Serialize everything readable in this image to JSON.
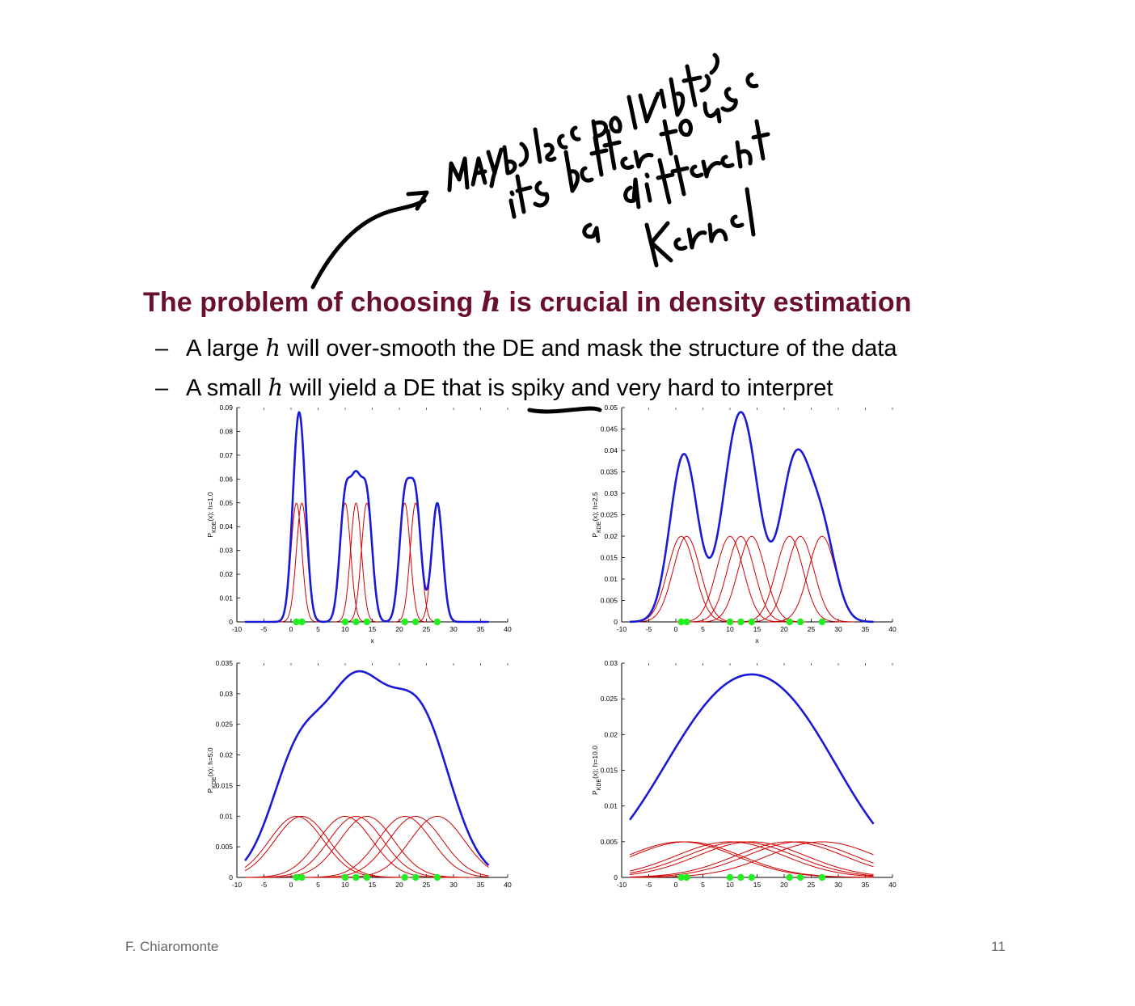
{
  "annotation": {
    "handwritten_text": [
      "MAYBE less points,",
      "its better to use",
      "a different",
      "Kernel"
    ]
  },
  "slide": {
    "heading_pre": "The problem of choosing ",
    "heading_var": "h",
    "heading_post": " is crucial in density estimation",
    "bullets": [
      {
        "dash": "–",
        "pre": "A large ",
        "var": "h",
        "post": " will over-smooth the DE and mask the structure of the data"
      },
      {
        "dash": "–",
        "pre": "A small ",
        "var": "h",
        "post": " will yield a DE that is spiky and very hard to interpret"
      }
    ],
    "footer_left": "F. Chiaromonte",
    "page_number": "11"
  },
  "colors": {
    "heading": "#6b0f2e",
    "kde_curve": "#1a1ad6",
    "kernel_curve": "#d00000",
    "data_point": "#22ee22"
  },
  "chart_data": [
    {
      "type": "line",
      "bandwidth": 1.0,
      "points": [
        1,
        2,
        10,
        12,
        14,
        21,
        23,
        27
      ],
      "xlim": [
        -10,
        40
      ],
      "xticks": [
        "-10",
        "-5",
        "0",
        "5",
        "10",
        "15",
        "20",
        "25",
        "30",
        "35",
        "40"
      ],
      "ylim": [
        0,
        0.09
      ],
      "yticks": [
        "0",
        "0.01",
        "0.02",
        "0.03",
        "0.04",
        "0.05",
        "0.06",
        "0.07",
        "0.08",
        "0.09"
      ],
      "ylabel_main": "P",
      "ylabel_sub": "KDE",
      "ylabel_rest": "(x); h=1.0",
      "xlabel": "x",
      "series": [
        {
          "name": ""
        }
      ]
    },
    {
      "type": "line",
      "bandwidth": 2.5,
      "points": [
        1,
        2,
        10,
        12,
        14,
        21,
        23,
        27
      ],
      "xlim": [
        -10,
        40
      ],
      "xticks": [
        "-10",
        "-5",
        "0",
        "5",
        "10",
        "15",
        "20",
        "25",
        "30",
        "35",
        "40"
      ],
      "ylim": [
        0,
        0.05
      ],
      "yticks": [
        "0",
        "0.005",
        "0.01",
        "0.015",
        "0.02",
        "0.025",
        "0.03",
        "0.035",
        "0.04",
        "0.045",
        "0.05"
      ],
      "ylabel_main": "P",
      "ylabel_sub": "KDE",
      "ylabel_rest": "(x); h=2.5",
      "xlabel": "x"
    },
    {
      "type": "line",
      "bandwidth": 5.0,
      "points": [
        1,
        2,
        10,
        12,
        14,
        21,
        23,
        27
      ],
      "xlim": [
        -10,
        40
      ],
      "xticks": [
        "-10",
        "-5",
        "0",
        "5",
        "10",
        "15",
        "20",
        "25",
        "30",
        "35",
        "40"
      ],
      "ylim": [
        0,
        0.035
      ],
      "yticks": [
        "0",
        "0.005",
        "0.01",
        "0.015",
        "0.02",
        "0.025",
        "0.03",
        "0.035"
      ],
      "ylabel_main": "P",
      "ylabel_sub": "KDE",
      "ylabel_rest": "(x); h=5.0",
      "xlabel": ""
    },
    {
      "type": "line",
      "bandwidth": 10.0,
      "points": [
        1,
        2,
        10,
        12,
        14,
        21,
        23,
        27
      ],
      "xlim": [
        -10,
        40
      ],
      "xticks": [
        "-10",
        "-5",
        "0",
        "5",
        "10",
        "15",
        "20",
        "25",
        "30",
        "35",
        "40"
      ],
      "ylim": [
        0,
        0.03
      ],
      "yticks": [
        "0",
        "0.005",
        "0.01",
        "0.015",
        "0.02",
        "0.025",
        "0.03"
      ],
      "ylabel_main": "P",
      "ylabel_sub": "KDE",
      "ylabel_rest": "(x); h=10.0",
      "xlabel": ""
    }
  ]
}
